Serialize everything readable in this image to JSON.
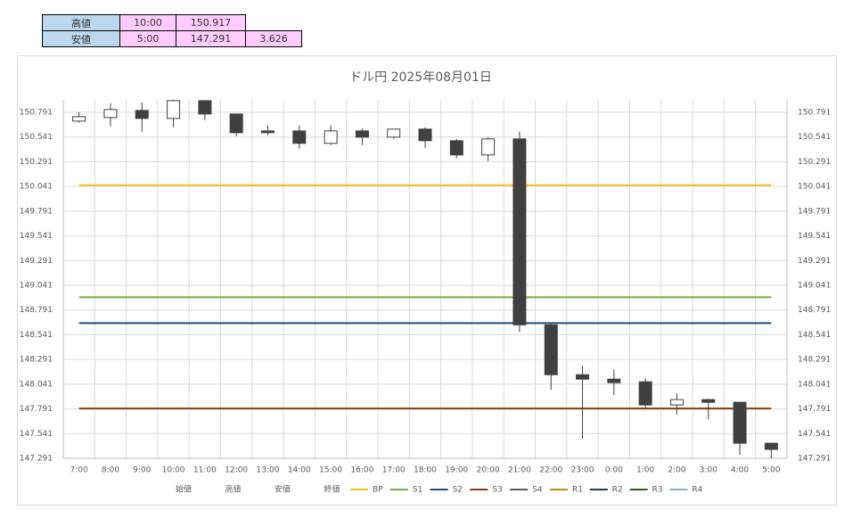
{
  "table": {
    "rows": [
      [
        "高値",
        "10:00",
        "150.917"
      ],
      [
        "安値",
        "5:00",
        "147.291",
        "3.626"
      ]
    ]
  },
  "chart_data": {
    "type": "candlestick",
    "title": "ドル円  2025年08月01日",
    "categories": [
      "7:00",
      "8:00",
      "9:00",
      "10:00",
      "11:00",
      "12:00",
      "13:00",
      "14:00",
      "15:00",
      "16:00",
      "17:00",
      "18:00",
      "19:00",
      "20:00",
      "21:00",
      "22:00",
      "23:00",
      "0:00",
      "1:00",
      "2:00",
      "3:00",
      "4:00",
      "5:00"
    ],
    "series": [
      {
        "name": "始値",
        "values": [
          150.702,
          150.738,
          150.81,
          150.729,
          150.909,
          150.774,
          150.603,
          150.603,
          150.477,
          150.603,
          150.54,
          150.621,
          150.504,
          150.36,
          150.522,
          148.641,
          148.137,
          148.092,
          148.065,
          147.831,
          147.885,
          147.858,
          147.444
        ]
      },
      {
        "name": "高値",
        "values": [
          150.792,
          150.882,
          150.891,
          150.917,
          150.905,
          150.774,
          150.657,
          150.657,
          150.657,
          150.63,
          150.621,
          150.639,
          150.522,
          150.54,
          150.594,
          148.659,
          148.227,
          148.191,
          148.101,
          147.948,
          147.894,
          147.858,
          147.444
        ]
      },
      {
        "name": "安値",
        "values": [
          150.684,
          150.648,
          150.594,
          150.639,
          150.711,
          150.549,
          150.558,
          150.423,
          150.459,
          150.459,
          150.522,
          150.432,
          150.324,
          150.297,
          148.569,
          147.984,
          147.489,
          147.93,
          147.786,
          147.732,
          147.687,
          147.327,
          147.291
        ]
      },
      {
        "name": "終値",
        "values": [
          150.747,
          150.819,
          150.729,
          150.909,
          150.774,
          150.585,
          150.585,
          150.477,
          150.603,
          150.54,
          150.621,
          150.504,
          150.36,
          150.522,
          148.641,
          148.137,
          148.092,
          148.056,
          147.831,
          147.885,
          147.858,
          147.444,
          147.381
        ]
      }
    ],
    "lines": [
      {
        "name": "BP",
        "color": "#f2c21b",
        "value": 150.054
      },
      {
        "name": "S1",
        "color": "#70ad47",
        "value": 148.92
      },
      {
        "name": "S2",
        "color": "#1f4e79",
        "value": 148.659
      },
      {
        "name": "S3",
        "color": "#843c0c",
        "value": 147.795
      },
      {
        "name": "S4",
        "color": "#595959"
      },
      {
        "name": "R1",
        "color": "#bf8f00"
      },
      {
        "name": "R2",
        "color": "#203864"
      },
      {
        "name": "R3",
        "color": "#375623"
      },
      {
        "name": "R4",
        "color": "#7fb2d9"
      }
    ],
    "ylim": [
      147.291,
      150.917
    ],
    "yticks": [
      147.291,
      147.541,
      147.791,
      148.041,
      148.291,
      148.541,
      148.791,
      149.041,
      149.291,
      149.541,
      149.791,
      150.041,
      150.291,
      150.541,
      150.791
    ],
    "grid": true,
    "up_color": "#ffffff",
    "down_color": "#404040"
  }
}
